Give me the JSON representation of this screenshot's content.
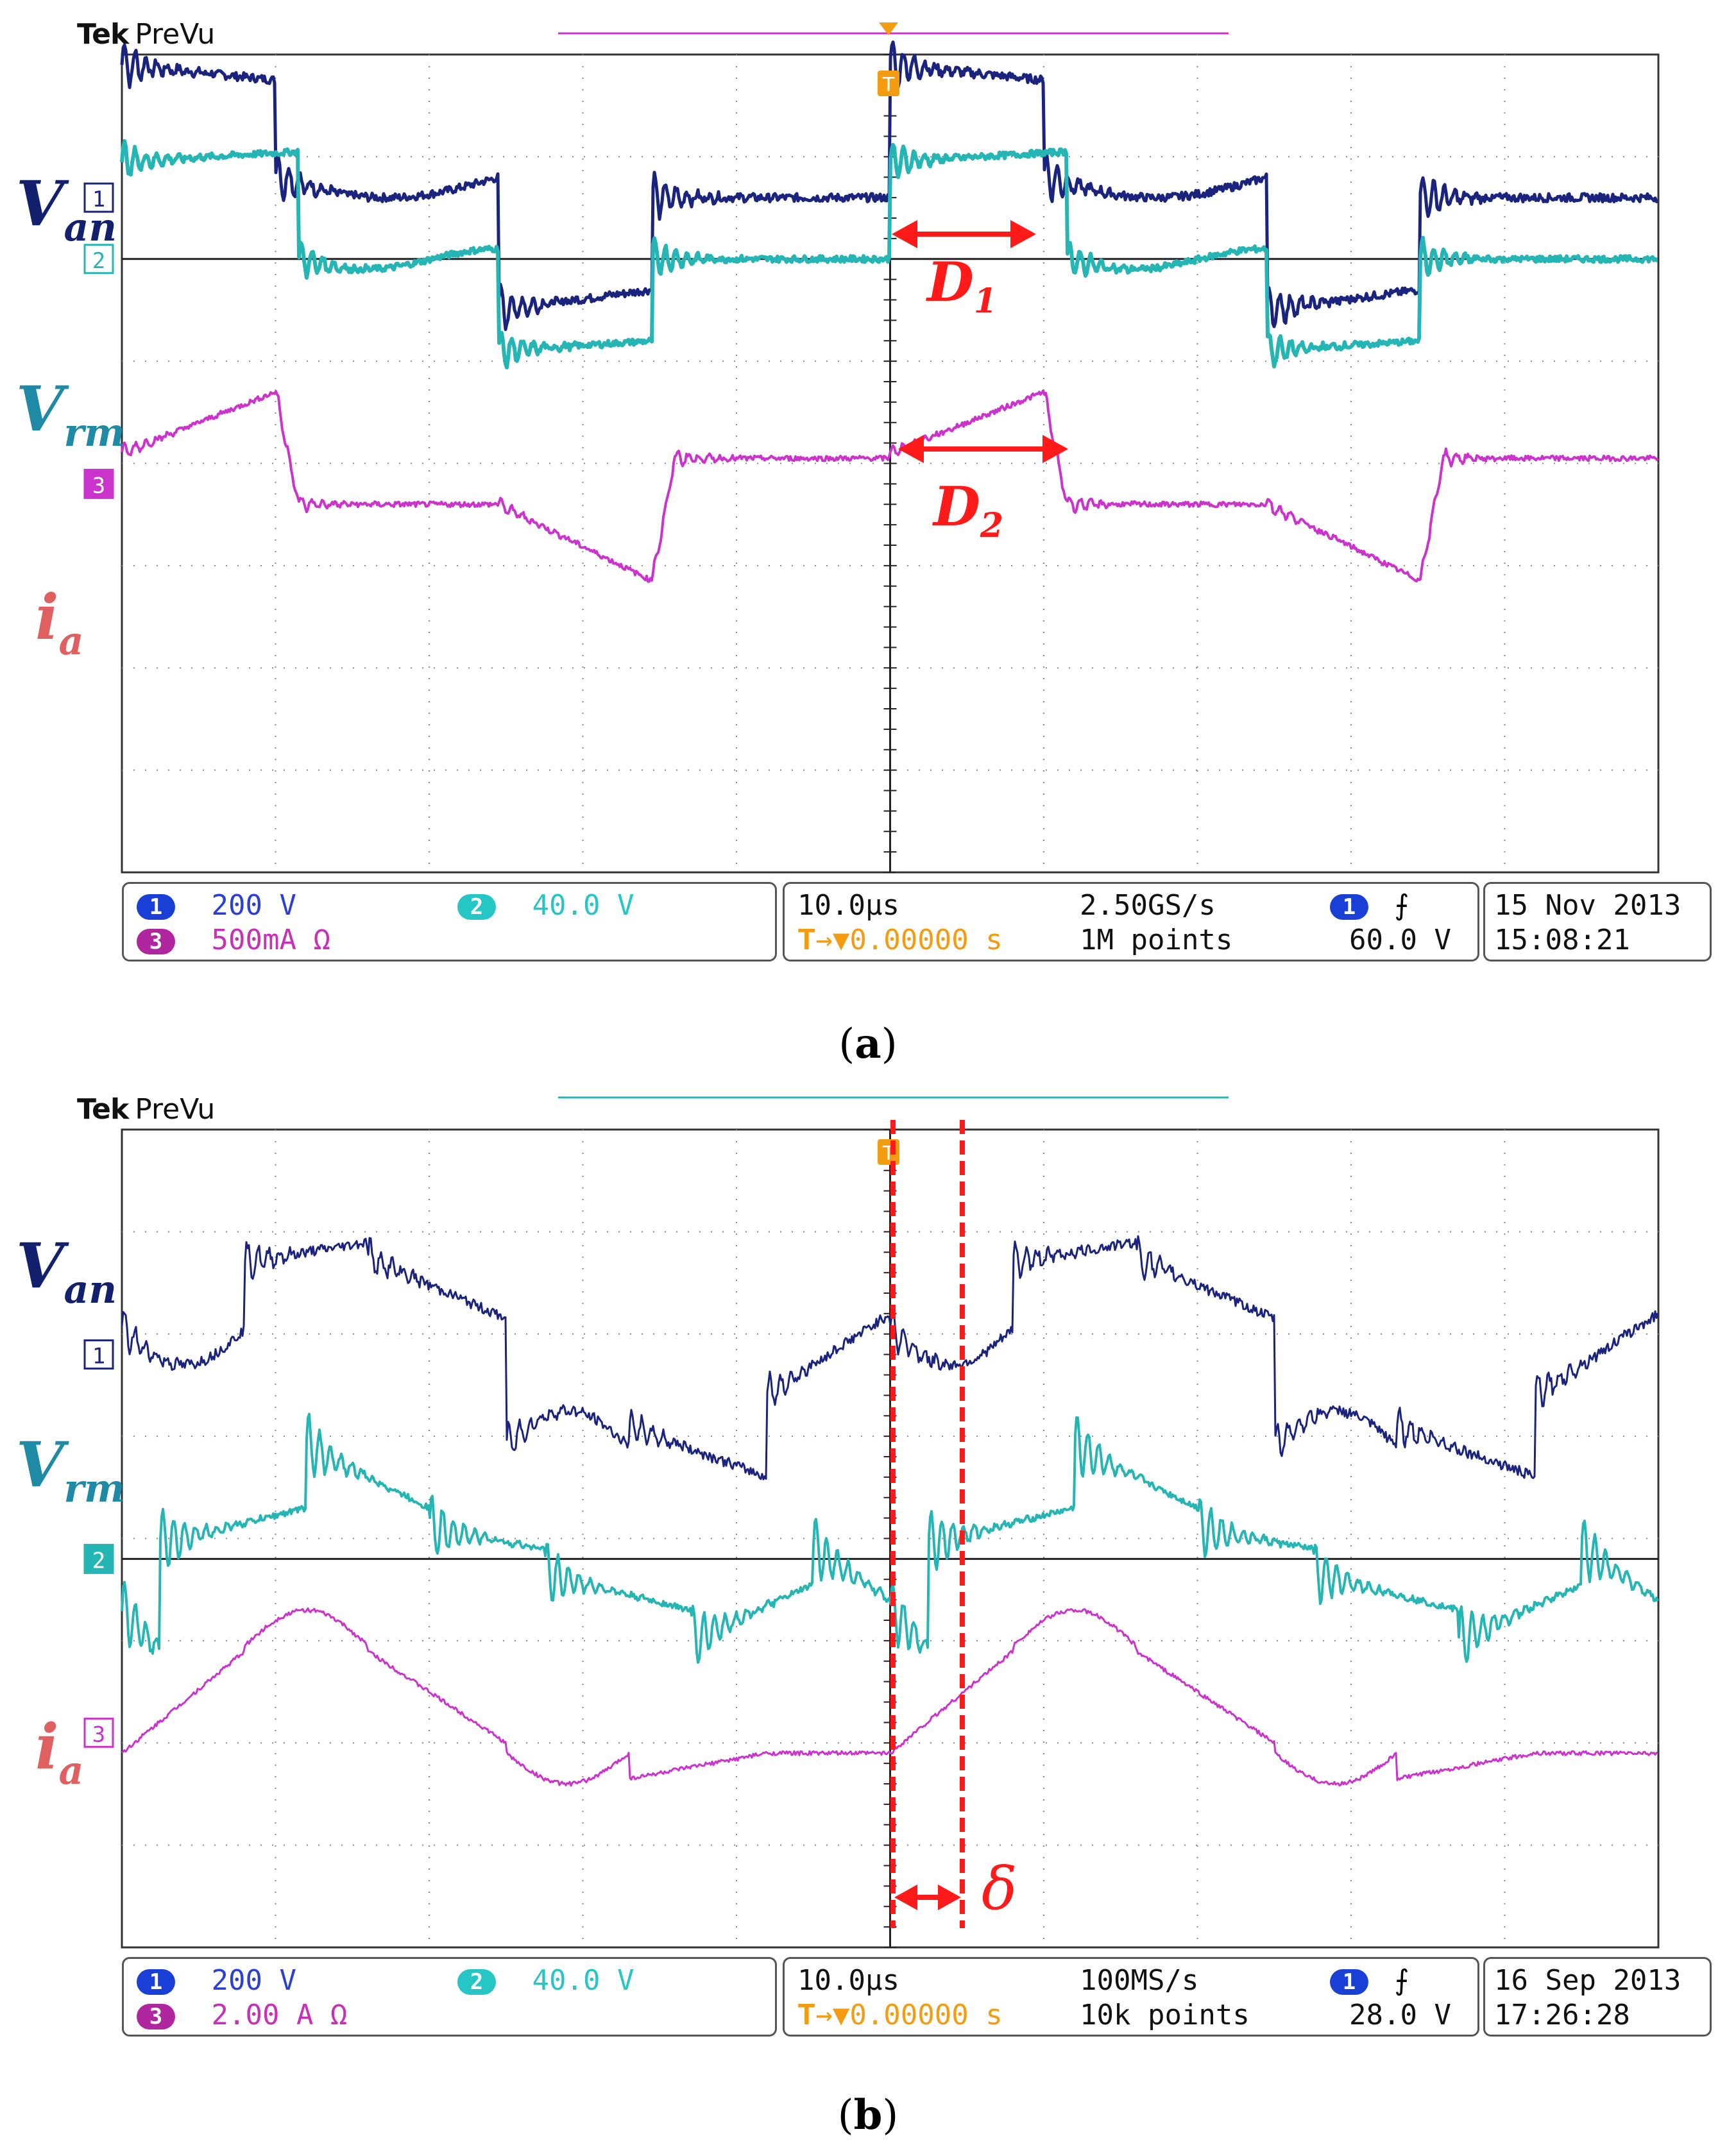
{
  "colors": {
    "ch1": "#1a237e",
    "ch2": "#26b5b5",
    "ch3": "#cc33cc",
    "ch1_label": "#12206e",
    "ch2_label": "#1f8aa6",
    "ch3_label": "#e06060",
    "grid": "#333333",
    "annot": "#ff1a1a",
    "trigger": "#f39c12"
  },
  "brand": {
    "tek": "Tek",
    "mode": "PreVu"
  },
  "chart_data": [
    {
      "panel": "a",
      "type": "line",
      "caption": "a",
      "trace_labels": {
        "v_main": "V",
        "v_sub": "an",
        "vr_main": "V",
        "vr_sub": "rm",
        "i_main": "i",
        "i_sub": "a"
      },
      "markers": {
        "ch1": "1",
        "ch2": "2",
        "ch3": "3",
        "trigger": "T"
      },
      "annotations": {
        "d1_main": "D",
        "d1_sub": "1",
        "d2_main": "D",
        "d2_sub": "2"
      },
      "x_divisions": 10,
      "y_divisions": 8,
      "time_per_div": "10.0µs",
      "series": [
        {
          "name": "Van",
          "channel": 1,
          "scale": "200 V"
        },
        {
          "name": "Vrm",
          "channel": 2,
          "scale": "40.0 V"
        },
        {
          "name": "ia",
          "channel": 3,
          "scale": "500mA Ω"
        }
      ],
      "status": {
        "ch1_num": "1",
        "ch1_scale": "200 V",
        "ch2_num": "2",
        "ch2_scale": "40.0 V",
        "ch3_num": "3",
        "ch3_scale": "500mA Ω",
        "timebase": "10.0µs",
        "sample_rate": "2.50GS/s",
        "trigger_pos": "0.00000 s",
        "points": "1M points",
        "trig_ch": "1",
        "trig_level": "60.0 V",
        "date": "15 Nov 2013",
        "time": "15:08:21"
      }
    },
    {
      "panel": "b",
      "type": "line",
      "caption": "b",
      "trace_labels": {
        "v_main": "V",
        "v_sub": "an",
        "vr_main": "V",
        "vr_sub": "rm",
        "i_main": "i",
        "i_sub": "a"
      },
      "markers": {
        "ch1": "1",
        "ch2": "2",
        "ch3": "3",
        "trigger": "T"
      },
      "annotations": {
        "delta": "δ"
      },
      "x_divisions": 10,
      "y_divisions": 8,
      "time_per_div": "10.0µs",
      "series": [
        {
          "name": "Van",
          "channel": 1,
          "scale": "200 V"
        },
        {
          "name": "Vrm",
          "channel": 2,
          "scale": "40.0 V"
        },
        {
          "name": "ia",
          "channel": 3,
          "scale": "2.00 A Ω"
        }
      ],
      "status": {
        "ch1_num": "1",
        "ch1_scale": "200 V",
        "ch2_num": "2",
        "ch2_scale": "40.0 V",
        "ch3_num": "3",
        "ch3_scale": "2.00 A Ω",
        "timebase": "10.0µs",
        "sample_rate": "100MS/s",
        "trigger_pos": "0.00000 s",
        "points": "10k points",
        "trig_ch": "1",
        "trig_level": "28.0 V",
        "date": "16 Sep 2013",
        "time": "17:26:28"
      }
    }
  ]
}
